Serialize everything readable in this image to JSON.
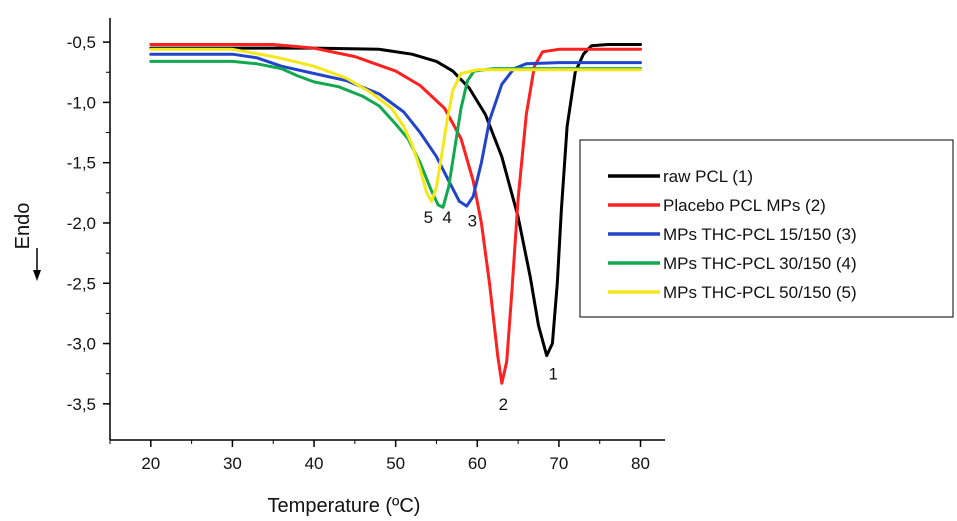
{
  "chart_data": {
    "type": "line",
    "xlabel": "Temperature (ºC)",
    "ylabel": "Endo",
    "xlim": [
      15,
      83
    ],
    "ylim": [
      -3.8,
      -0.3
    ],
    "xticks": [
      20,
      30,
      40,
      50,
      60,
      70,
      80
    ],
    "yticks": [
      -0.5,
      -1.0,
      -1.5,
      -2.0,
      -2.5,
      -3.0,
      -3.5
    ],
    "x_tick_labels": [
      "20",
      "30",
      "40",
      "50",
      "60",
      "70",
      "80"
    ],
    "y_tick_labels": [
      "-0,5",
      "-1,0",
      "-1,5",
      "-2,0",
      "-2,5",
      "-3,0",
      "-3,5"
    ],
    "legend_position": "right",
    "series": [
      {
        "name": "raw PCL (1)",
        "color": "#000000",
        "points": [
          [
            20,
            -0.55
          ],
          [
            30,
            -0.55
          ],
          [
            40,
            -0.55
          ],
          [
            48,
            -0.56
          ],
          [
            52,
            -0.6
          ],
          [
            55,
            -0.66
          ],
          [
            57,
            -0.74
          ],
          [
            59,
            -0.88
          ],
          [
            61,
            -1.1
          ],
          [
            63,
            -1.45
          ],
          [
            65,
            -1.95
          ],
          [
            66.5,
            -2.45
          ],
          [
            67.5,
            -2.85
          ],
          [
            68.5,
            -3.1
          ],
          [
            69.2,
            -3.0
          ],
          [
            69.8,
            -2.5
          ],
          [
            70.3,
            -1.9
          ],
          [
            71,
            -1.2
          ],
          [
            72,
            -0.75
          ],
          [
            73,
            -0.6
          ],
          [
            74,
            -0.53
          ],
          [
            76,
            -0.52
          ],
          [
            80,
            -0.52
          ]
        ]
      },
      {
        "name": "Placebo PCL MPs (2)",
        "color": "#ff2020",
        "points": [
          [
            20,
            -0.52
          ],
          [
            30,
            -0.52
          ],
          [
            35,
            -0.52
          ],
          [
            40,
            -0.55
          ],
          [
            45,
            -0.62
          ],
          [
            50,
            -0.74
          ],
          [
            53,
            -0.86
          ],
          [
            56,
            -1.05
          ],
          [
            58,
            -1.3
          ],
          [
            59.5,
            -1.65
          ],
          [
            60.5,
            -2.0
          ],
          [
            61.5,
            -2.5
          ],
          [
            62.5,
            -3.1
          ],
          [
            63,
            -3.33
          ],
          [
            63.6,
            -3.15
          ],
          [
            64.2,
            -2.6
          ],
          [
            65,
            -1.8
          ],
          [
            66,
            -1.1
          ],
          [
            67,
            -0.7
          ],
          [
            68,
            -0.58
          ],
          [
            70,
            -0.56
          ],
          [
            74,
            -0.56
          ],
          [
            80,
            -0.56
          ]
        ]
      },
      {
        "name": "MPs THC-PCL 15/150 (3)",
        "color": "#2244cc",
        "points": [
          [
            20,
            -0.6
          ],
          [
            30,
            -0.6
          ],
          [
            33,
            -0.63
          ],
          [
            36,
            -0.7
          ],
          [
            40,
            -0.76
          ],
          [
            44,
            -0.82
          ],
          [
            48,
            -0.93
          ],
          [
            51,
            -1.08
          ],
          [
            53,
            -1.25
          ],
          [
            55,
            -1.45
          ],
          [
            56.5,
            -1.65
          ],
          [
            57.8,
            -1.82
          ],
          [
            58.7,
            -1.86
          ],
          [
            59.5,
            -1.78
          ],
          [
            60.5,
            -1.5
          ],
          [
            61.5,
            -1.15
          ],
          [
            63,
            -0.85
          ],
          [
            64.5,
            -0.72
          ],
          [
            66,
            -0.68
          ],
          [
            70,
            -0.67
          ],
          [
            80,
            -0.67
          ]
        ]
      },
      {
        "name": "MPs THC-PCL 30/150 (4)",
        "color": "#12a850",
        "points": [
          [
            20,
            -0.66
          ],
          [
            30,
            -0.66
          ],
          [
            33,
            -0.68
          ],
          [
            36,
            -0.72
          ],
          [
            38,
            -0.78
          ],
          [
            40,
            -0.83
          ],
          [
            43,
            -0.87
          ],
          [
            46,
            -0.95
          ],
          [
            48,
            -1.03
          ],
          [
            50,
            -1.18
          ],
          [
            51.5,
            -1.3
          ],
          [
            53,
            -1.5
          ],
          [
            54.3,
            -1.72
          ],
          [
            55.2,
            -1.85
          ],
          [
            55.8,
            -1.87
          ],
          [
            56.5,
            -1.7
          ],
          [
            57.2,
            -1.4
          ],
          [
            58,
            -1.05
          ],
          [
            58.8,
            -0.82
          ],
          [
            59.6,
            -0.74
          ],
          [
            62,
            -0.72
          ],
          [
            70,
            -0.72
          ],
          [
            80,
            -0.72
          ]
        ]
      },
      {
        "name": "MPs THC-PCL 50/150 (5)",
        "color": "#f5e81a",
        "points": [
          [
            20,
            -0.56
          ],
          [
            30,
            -0.56
          ],
          [
            35,
            -0.62
          ],
          [
            40,
            -0.7
          ],
          [
            44,
            -0.8
          ],
          [
            47,
            -0.92
          ],
          [
            49.5,
            -1.05
          ],
          [
            51,
            -1.2
          ],
          [
            52,
            -1.35
          ],
          [
            53,
            -1.55
          ],
          [
            53.8,
            -1.75
          ],
          [
            54.4,
            -1.82
          ],
          [
            55,
            -1.7
          ],
          [
            55.6,
            -1.45
          ],
          [
            56.3,
            -1.15
          ],
          [
            57,
            -0.9
          ],
          [
            58,
            -0.76
          ],
          [
            60,
            -0.73
          ],
          [
            70,
            -0.73
          ],
          [
            80,
            -0.73
          ]
        ]
      }
    ],
    "annotations": [
      {
        "text": "1",
        "x": 69.3,
        "y": -3.3
      },
      {
        "text": "2",
        "x": 63.2,
        "y": -3.55
      },
      {
        "text": "3",
        "x": 59.4,
        "y": -2.03
      },
      {
        "text": "4",
        "x": 56.3,
        "y": -2.0
      },
      {
        "text": "5",
        "x": 54.0,
        "y": -2.0
      }
    ]
  }
}
